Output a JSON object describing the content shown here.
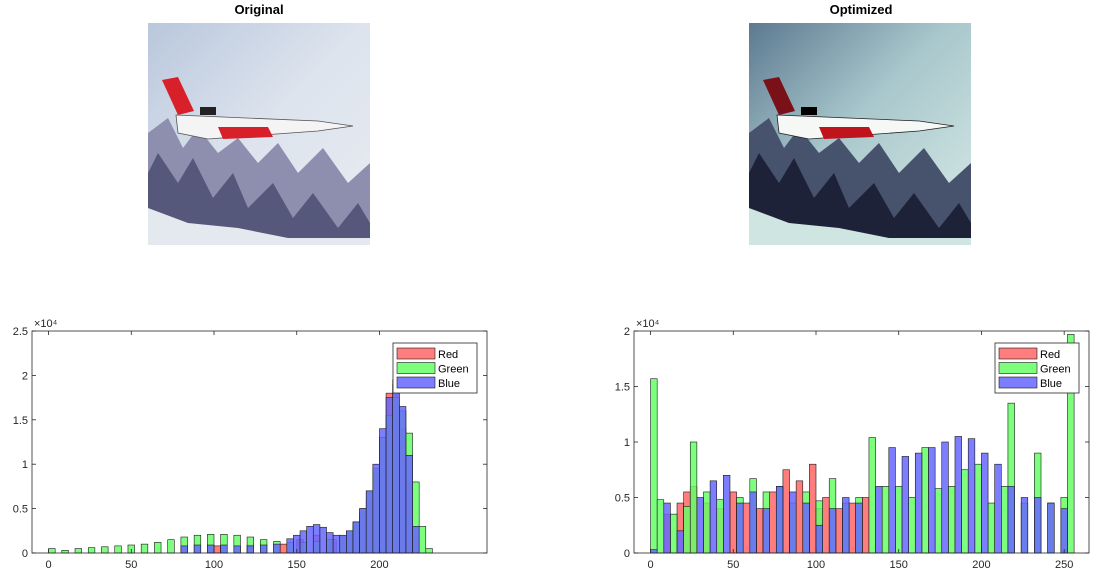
{
  "images": [
    {
      "title": "Original",
      "tone": "original"
    },
    {
      "title": "Optimized",
      "tone": "optimized"
    }
  ],
  "legend": [
    "Red",
    "Green",
    "Blue"
  ],
  "colors": {
    "red": "#ff6666",
    "green": "#66ff66",
    "blue": "#6666ff",
    "edge": "#1a1a1a"
  },
  "chart_data": [
    {
      "type": "bar",
      "subtype": "histogram",
      "ylim": [
        0,
        25000
      ],
      "xlim": [
        -10,
        265
      ],
      "y_exponent_label": "×10⁴",
      "yticks": [
        0,
        5000,
        10000,
        15000,
        20000,
        25000
      ],
      "ytick_labels": [
        "0",
        "0.5",
        "1",
        "1.5",
        "2",
        "2.5"
      ],
      "xticks": [
        0,
        50,
        100,
        150,
        200
      ],
      "xtick_labels": [
        "0",
        "50",
        "100",
        "150",
        "200"
      ],
      "legend": [
        "Red",
        "Green",
        "Blue"
      ],
      "legend_position": "top-right",
      "bin_width": 4,
      "series": [
        {
          "name": "Red",
          "x": [
            100,
            120,
            140,
            150,
            160,
            170,
            176,
            180,
            184,
            188,
            192,
            196,
            200,
            204,
            208,
            212,
            216,
            220
          ],
          "values": [
            800,
            900,
            1000,
            1500,
            2000,
            1500,
            1500,
            2000,
            3000,
            4500,
            6000,
            9000,
            13000,
            18000,
            19000,
            14000,
            8000,
            2000
          ]
        },
        {
          "name": "Green",
          "x": [
            0,
            8,
            16,
            24,
            32,
            40,
            48,
            56,
            64,
            72,
            80,
            88,
            96,
            104,
            112,
            120,
            128,
            136,
            144,
            152,
            160,
            168,
            176,
            180,
            184,
            188,
            192,
            196,
            200,
            204,
            208,
            212,
            216,
            220,
            224,
            228
          ],
          "values": [
            500,
            300,
            500,
            600,
            700,
            800,
            900,
            1000,
            1200,
            1500,
            1800,
            2000,
            2100,
            2100,
            2000,
            1800,
            1500,
            1300,
            1200,
            1200,
            1300,
            1500,
            1800,
            2500,
            3500,
            5000,
            7000,
            9500,
            13000,
            15500,
            17500,
            16000,
            13500,
            8000,
            3000,
            500
          ]
        },
        {
          "name": "Blue",
          "x": [
            80,
            88,
            96,
            104,
            112,
            120,
            128,
            136,
            144,
            148,
            152,
            156,
            160,
            164,
            168,
            172,
            176,
            180,
            184,
            188,
            192,
            196,
            200,
            204,
            208,
            212,
            216,
            220
          ],
          "values": [
            800,
            900,
            900,
            900,
            800,
            800,
            900,
            1000,
            1600,
            2000,
            2500,
            3000,
            3200,
            2900,
            2300,
            2000,
            2000,
            2500,
            3500,
            5000,
            7000,
            10000,
            14000,
            17500,
            19500,
            16500,
            11000,
            3000
          ]
        }
      ]
    },
    {
      "type": "bar",
      "subtype": "histogram",
      "ylim": [
        0,
        20000
      ],
      "xlim": [
        -10,
        265
      ],
      "y_exponent_label": "×10⁴",
      "yticks": [
        0,
        5000,
        10000,
        15000,
        20000
      ],
      "ytick_labels": [
        "0",
        "0.5",
        "1",
        "1.5",
        "2"
      ],
      "xticks": [
        0,
        50,
        100,
        150,
        200,
        250
      ],
      "xtick_labels": [
        "0",
        "50",
        "100",
        "150",
        "200",
        "250"
      ],
      "legend": [
        "Red",
        "Green",
        "Blue"
      ],
      "legend_position": "top-right",
      "bin_width": 4,
      "series": [
        {
          "name": "Red",
          "x": [
            8,
            16,
            20,
            24,
            32,
            40,
            48,
            56,
            64,
            72,
            80,
            88,
            96,
            100,
            104,
            112,
            120,
            128
          ],
          "values": [
            3500,
            4500,
            5500,
            6000,
            4500,
            4000,
            5500,
            4500,
            4000,
            5500,
            7500,
            6500,
            8000,
            4000,
            5000,
            4000,
            4500,
            5000
          ]
        },
        {
          "name": "Green",
          "x": [
            0,
            4,
            12,
            20,
            24,
            32,
            40,
            52,
            60,
            68,
            76,
            84,
            92,
            100,
            108,
            116,
            124,
            132,
            140,
            148,
            156,
            164,
            172,
            180,
            188,
            196,
            204,
            212,
            216,
            224,
            232,
            240,
            248,
            252
          ],
          "values": [
            15700,
            4800,
            3500,
            4200,
            10000,
            5500,
            4800,
            5000,
            6700,
            5500,
            6000,
            4500,
            5500,
            4700,
            6700,
            4500,
            5000,
            10400,
            6000,
            6000,
            5000,
            9500,
            5800,
            6000,
            7500,
            8000,
            4500,
            6000,
            13500,
            4500,
            9000,
            4500,
            5000,
            19700
          ]
        },
        {
          "name": "Blue",
          "x": [
            0,
            8,
            16,
            28,
            36,
            44,
            52,
            60,
            68,
            76,
            84,
            92,
            100,
            108,
            116,
            124,
            136,
            144,
            152,
            160,
            168,
            176,
            184,
            192,
            200,
            208,
            216,
            224,
            232,
            240,
            248
          ],
          "values": [
            300,
            4500,
            2000,
            5000,
            6500,
            7000,
            4500,
            5500,
            4000,
            6000,
            5500,
            4500,
            2500,
            4000,
            5000,
            4500,
            6000,
            9500,
            8700,
            9000,
            9500,
            10000,
            10500,
            10300,
            9000,
            8000,
            6000,
            5000,
            5000,
            4500,
            4000
          ]
        }
      ]
    }
  ]
}
